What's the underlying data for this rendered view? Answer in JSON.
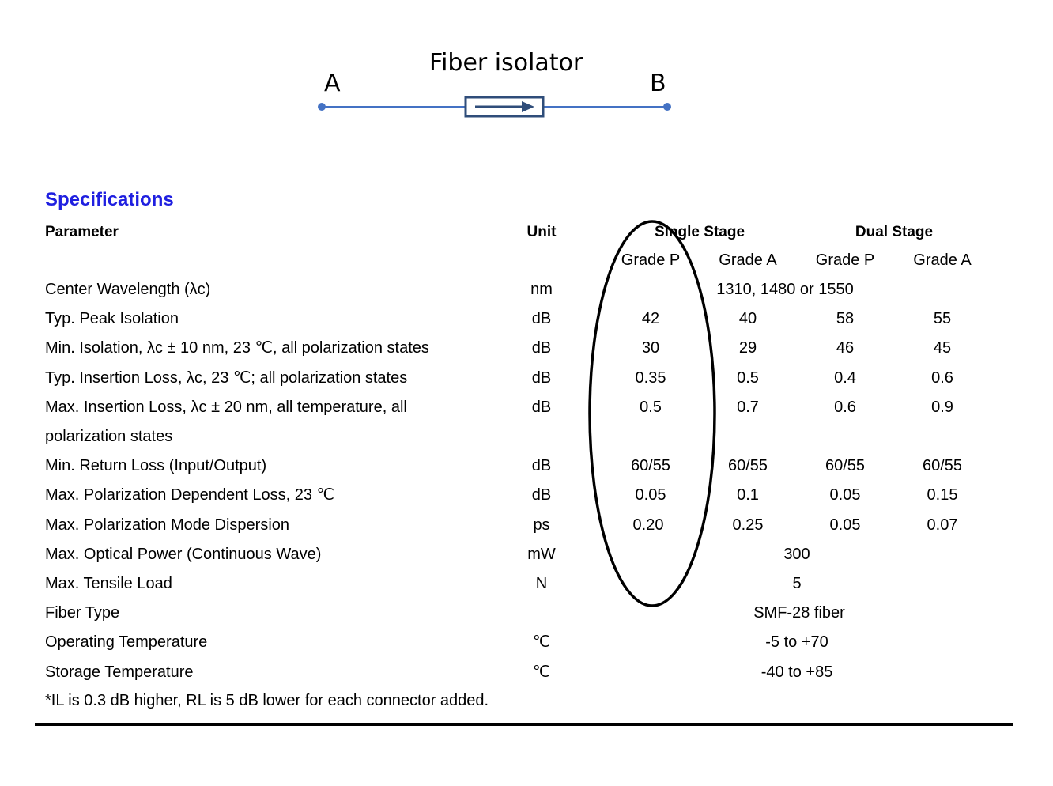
{
  "diagram": {
    "title": "Fiber isolator",
    "port_a": "A",
    "port_b": "B",
    "line_color": "#4472c4",
    "box_color": "#2f4d7a"
  },
  "specs": {
    "heading": "Specifications",
    "heading_color": "#1f1fe0",
    "header": {
      "parameter": "Parameter",
      "unit": "Unit",
      "single_stage": "Single Stage",
      "dual_stage": "Dual Stage"
    },
    "grades": [
      "Grade P",
      "Grade A",
      "Grade P",
      "Grade A"
    ],
    "rows": [
      {
        "param": "Center Wavelength (λc)",
        "unit": "nm",
        "span": "1310, 1480 or 1550"
      },
      {
        "param": "Typ. Peak Isolation",
        "unit": "dB",
        "values": [
          "42",
          "40",
          "58",
          "55"
        ]
      },
      {
        "param": "Min. Isolation, λc ± 10 nm, 23 ℃, all polarization states",
        "unit": "dB",
        "values": [
          "30",
          "29",
          "46",
          "45"
        ]
      },
      {
        "param": "Typ. Insertion Loss, λc, 23 ℃; all polarization states",
        "unit": "dB",
        "values": [
          "0.35",
          "0.5",
          "0.4",
          "0.6"
        ]
      },
      {
        "param": "Max. Insertion Loss, λc ± 20 nm, all temperature, all",
        "unit": "dB",
        "values": [
          "0.5",
          "0.7",
          "0.6",
          "0.9"
        ]
      },
      {
        "param": "polarization states"
      },
      {
        "param": "Min. Return Loss (Input/Output)",
        "unit": "dB",
        "values": [
          "60/55",
          "60/55",
          "60/55",
          "60/55"
        ]
      },
      {
        "param": "Max. Polarization Dependent Loss, 23 ℃",
        "unit": "dB",
        "values": [
          "0.05",
          "0.1",
          "0.05",
          "0.15"
        ]
      },
      {
        "param": "Max. Polarization Mode Dispersion",
        "unit": "ps",
        "values": [
          "0.20",
          "0.25",
          "0.05",
          "0.07"
        ]
      },
      {
        "param": "Max. Optical Power (Continuous Wave)",
        "unit": "mW",
        "span": "300"
      },
      {
        "param": "Max. Tensile Load",
        "unit": "N",
        "span": "5"
      },
      {
        "param": "Fiber Type",
        "unit": "",
        "span": "SMF-28 fiber"
      },
      {
        "param": "Operating Temperature",
        "unit": "℃",
        "span": "-5 to +70"
      },
      {
        "param": "Storage Temperature",
        "unit": "℃",
        "span": "-40 to +85"
      }
    ],
    "footnote": "*IL is 0.3 dB higher, RL is 5 dB lower for each connector added."
  }
}
